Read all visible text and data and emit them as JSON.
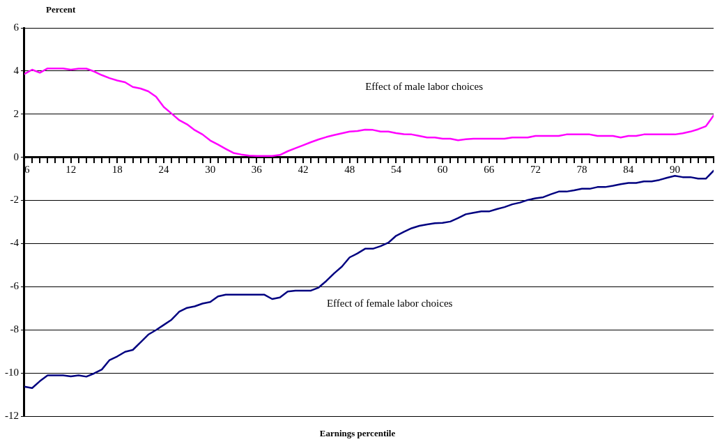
{
  "chart_data": {
    "type": "line",
    "xlabel": "Earnings percentile",
    "ylabel": "Percent",
    "x": [
      6,
      7,
      8,
      9,
      10,
      11,
      12,
      13,
      14,
      15,
      16,
      17,
      18,
      19,
      20,
      21,
      22,
      23,
      24,
      25,
      26,
      27,
      28,
      29,
      30,
      31,
      32,
      33,
      34,
      35,
      36,
      37,
      38,
      39,
      40,
      41,
      42,
      43,
      44,
      45,
      46,
      47,
      48,
      49,
      50,
      51,
      52,
      53,
      54,
      55,
      56,
      57,
      58,
      59,
      60,
      61,
      62,
      63,
      64,
      65,
      66,
      67,
      68,
      69,
      70,
      71,
      72,
      73,
      74,
      75,
      76,
      77,
      78,
      79,
      80,
      81,
      82,
      83,
      84,
      85,
      86,
      87,
      88,
      89,
      90,
      91,
      92,
      93,
      94,
      95
    ],
    "series": [
      {
        "color": "#ff00ff",
        "values": [
          3.86,
          4.06,
          3.92,
          4.12,
          4.12,
          4.12,
          4.06,
          4.11,
          4.11,
          3.98,
          3.81,
          3.67,
          3.56,
          3.48,
          3.26,
          3.19,
          3.06,
          2.81,
          2.33,
          2.03,
          1.72,
          1.53,
          1.26,
          1.06,
          0.78,
          0.59,
          0.39,
          0.2,
          0.13,
          0.08,
          0.06,
          0.06,
          0.06,
          0.11,
          0.28,
          0.42,
          0.56,
          0.7,
          0.83,
          0.94,
          1.03,
          1.11,
          1.19,
          1.22,
          1.28,
          1.27,
          1.19,
          1.19,
          1.12,
          1.07,
          1.06,
          0.99,
          0.92,
          0.92,
          0.86,
          0.86,
          0.79,
          0.84,
          0.86,
          0.86,
          0.86,
          0.86,
          0.86,
          0.92,
          0.92,
          0.92,
          0.99,
          0.99,
          0.99,
          0.99,
          1.06,
          1.06,
          1.06,
          1.06,
          0.99,
          0.99,
          0.99,
          0.92,
          0.99,
          0.99,
          1.06,
          1.06,
          1.06,
          1.06,
          1.06,
          1.11,
          1.19,
          1.3,
          1.44,
          1.94
        ]
      },
      {
        "color": "#000080",
        "values": [
          -10.63,
          -10.7,
          -10.38,
          -10.11,
          -10.11,
          -10.11,
          -10.16,
          -10.11,
          -10.17,
          -10.02,
          -9.84,
          -9.4,
          -9.23,
          -9.02,
          -8.93,
          -8.58,
          -8.22,
          -8.01,
          -7.77,
          -7.53,
          -7.16,
          -6.98,
          -6.91,
          -6.78,
          -6.71,
          -6.45,
          -6.37,
          -6.37,
          -6.37,
          -6.37,
          -6.37,
          -6.37,
          -6.57,
          -6.5,
          -6.22,
          -6.18,
          -6.18,
          -6.18,
          -6.04,
          -5.73,
          -5.38,
          -5.07,
          -4.64,
          -4.46,
          -4.24,
          -4.24,
          -4.12,
          -3.96,
          -3.64,
          -3.46,
          -3.29,
          -3.18,
          -3.11,
          -3.06,
          -3.04,
          -2.98,
          -2.82,
          -2.64,
          -2.57,
          -2.51,
          -2.51,
          -2.4,
          -2.31,
          -2.18,
          -2.1,
          -1.98,
          -1.9,
          -1.85,
          -1.71,
          -1.59,
          -1.59,
          -1.53,
          -1.46,
          -1.46,
          -1.38,
          -1.38,
          -1.32,
          -1.25,
          -1.19,
          -1.19,
          -1.12,
          -1.12,
          -1.05,
          -0.95,
          -0.86,
          -0.92,
          -0.92,
          -0.99,
          -0.99,
          -0.62
        ]
      }
    ],
    "annotations": [
      "Effect of male labor choices",
      "Effect of female labor choices"
    ],
    "xlim": [
      6,
      95
    ],
    "xticks": [
      6,
      {
        "value": 7,
        "label": null
      },
      {
        "value": 8,
        "label": null
      },
      {
        "value": 9,
        "label": null
      },
      {
        "value": 10,
        "label": null
      },
      {
        "value": 11,
        "label": null
      },
      12,
      {
        "value": 13,
        "label": null
      },
      {
        "value": 14,
        "label": null
      },
      {
        "value": 15,
        "label": null
      },
      {
        "value": 16,
        "label": null
      },
      {
        "value": 17,
        "label": null
      },
      18,
      {
        "value": 19,
        "label": null
      },
      {
        "value": 20,
        "label": null
      },
      {
        "value": 21,
        "label": null
      },
      {
        "value": 22,
        "label": null
      },
      {
        "value": 23,
        "label": null
      },
      24,
      {
        "value": 25,
        "label": null
      },
      {
        "value": 26,
        "label": null
      },
      {
        "value": 27,
        "label": null
      },
      {
        "value": 28,
        "label": null
      },
      {
        "value": 29,
        "label": null
      },
      30,
      {
        "value": 31,
        "label": null
      },
      {
        "value": 32,
        "label": null
      },
      {
        "value": 33,
        "label": null
      },
      {
        "value": 34,
        "label": null
      },
      {
        "value": 35,
        "label": null
      },
      36,
      {
        "value": 37,
        "label": null
      },
      {
        "value": 38,
        "label": null
      },
      {
        "value": 39,
        "label": null
      },
      {
        "value": 40,
        "label": null
      },
      {
        "value": 41,
        "label": null
      },
      42,
      {
        "value": 43,
        "label": null
      },
      {
        "value": 44,
        "label": null
      },
      {
        "value": 45,
        "label": null
      },
      {
        "value": 46,
        "label": null
      },
      {
        "value": 47,
        "label": null
      },
      48,
      {
        "value": 49,
        "label": null
      },
      {
        "value": 50,
        "label": null
      },
      {
        "value": 51,
        "label": null
      },
      {
        "value": 52,
        "label": null
      },
      {
        "value": 53,
        "label": null
      },
      54,
      {
        "value": 55,
        "label": null
      },
      {
        "value": 56,
        "label": null
      },
      {
        "value": 57,
        "label": null
      },
      {
        "value": 58,
        "label": null
      },
      {
        "value": 59,
        "label": null
      },
      60,
      {
        "value": 61,
        "label": null
      },
      {
        "value": 62,
        "label": null
      },
      {
        "value": 63,
        "label": null
      },
      {
        "value": 64,
        "label": null
      },
      {
        "value": 65,
        "label": null
      },
      66,
      {
        "value": 67,
        "label": null
      },
      {
        "value": 68,
        "label": null
      },
      {
        "value": 69,
        "label": null
      },
      {
        "value": 70,
        "label": null
      },
      {
        "value": 71,
        "label": null
      },
      72,
      {
        "value": 73,
        "label": null
      },
      {
        "value": 74,
        "label": null
      },
      {
        "value": 75,
        "label": null
      },
      {
        "value": 76,
        "label": null
      },
      {
        "value": 77,
        "label": null
      },
      78,
      {
        "value": 79,
        "label": null
      },
      {
        "value": 80,
        "label": null
      },
      {
        "value": 81,
        "label": null
      },
      {
        "value": 82,
        "label": null
      },
      {
        "value": 83,
        "label": null
      },
      84,
      {
        "value": 85,
        "label": null
      },
      {
        "value": 86,
        "label": null
      },
      {
        "value": 87,
        "label": null
      },
      {
        "value": 88,
        "label": null
      },
      {
        "value": 89,
        "label": null
      },
      90,
      {
        "value": 91,
        "label": null
      },
      {
        "value": 92,
        "label": null
      },
      {
        "value": 93,
        "label": null
      },
      {
        "value": 94,
        "label": null
      },
      {
        "value": 95,
        "label": null
      }
    ],
    "ylim": [
      -12,
      6
    ],
    "yticks": [
      -12,
      -10,
      -8,
      -6,
      -4,
      -2,
      0,
      2,
      4,
      6
    ],
    "grid": "y",
    "legend": false,
    "marker": "none",
    "line_style": "solid"
  }
}
